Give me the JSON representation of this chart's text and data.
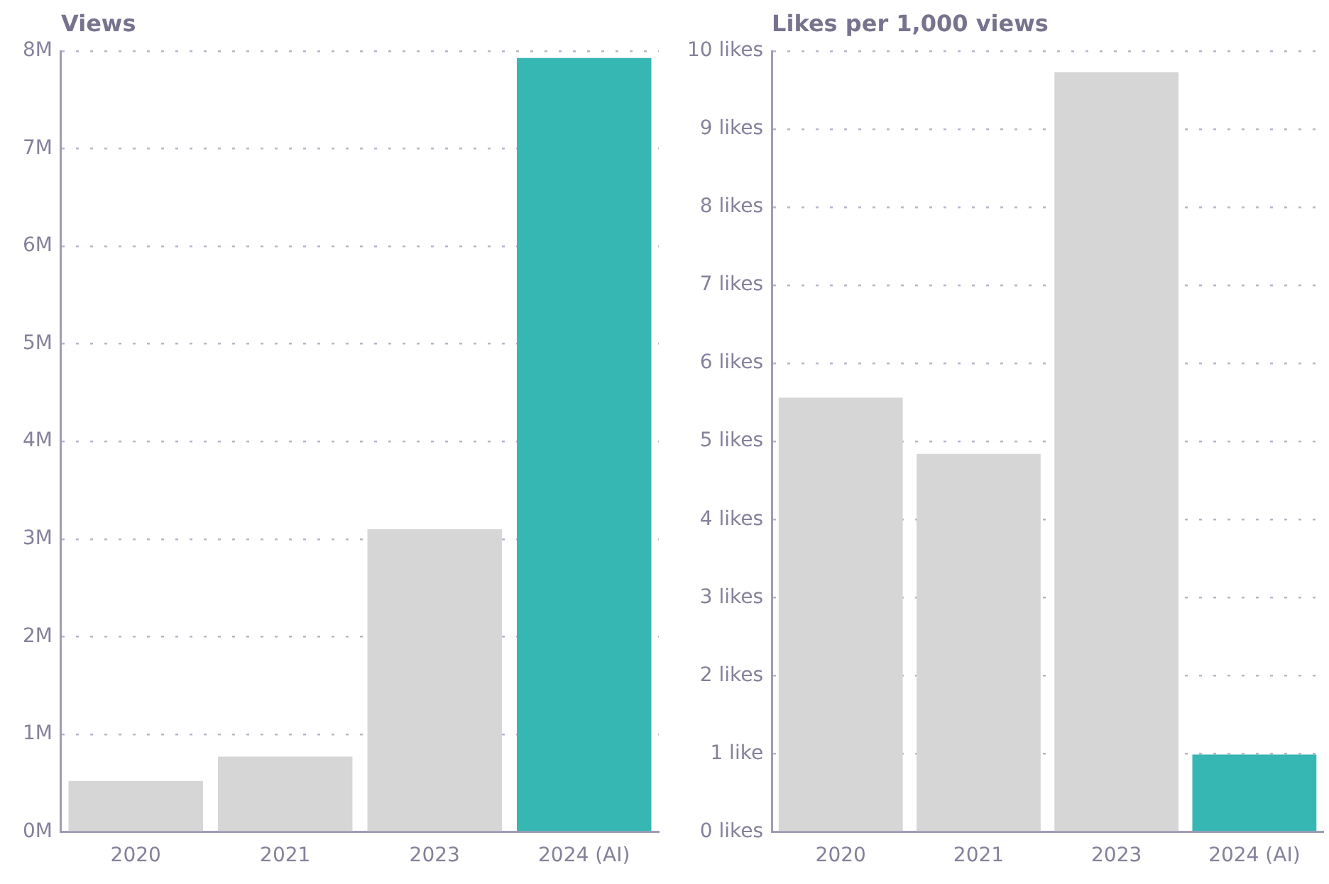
{
  "chart_data": [
    {
      "type": "bar",
      "title": "Views",
      "categories": [
        "2020",
        "2021",
        "2023",
        "2024 (AI)"
      ],
      "values": [
        0.52,
        0.77,
        3.1,
        7.93
      ],
      "colors": [
        "#d6d6d6",
        "#d6d6d6",
        "#d6d6d6",
        "#36b7b3"
      ],
      "ylim": [
        0,
        8
      ],
      "yticks": [
        {
          "value": 0,
          "label": "0M"
        },
        {
          "value": 1,
          "label": "1M"
        },
        {
          "value": 2,
          "label": "2M"
        },
        {
          "value": 3,
          "label": "3M"
        },
        {
          "value": 4,
          "label": "4M"
        },
        {
          "value": 5,
          "label": "5M"
        },
        {
          "value": 6,
          "label": "6M"
        },
        {
          "value": 7,
          "label": "7M"
        },
        {
          "value": 8,
          "label": "8M"
        }
      ],
      "grid": "y",
      "legend": false
    },
    {
      "type": "bar",
      "title": "Likes per 1,000 views",
      "categories": [
        "2020",
        "2021",
        "2023",
        "2024 (AI)"
      ],
      "values": [
        5.56,
        4.84,
        9.73,
        0.99
      ],
      "colors": [
        "#d6d6d6",
        "#d6d6d6",
        "#d6d6d6",
        "#36b7b3"
      ],
      "ylim": [
        0,
        10
      ],
      "yticks": [
        {
          "value": 0,
          "label": "0 likes"
        },
        {
          "value": 1,
          "label": "1 like"
        },
        {
          "value": 2,
          "label": "2 likes"
        },
        {
          "value": 3,
          "label": "3 likes"
        },
        {
          "value": 4,
          "label": "4 likes"
        },
        {
          "value": 5,
          "label": "5 likes"
        },
        {
          "value": 6,
          "label": "6 likes"
        },
        {
          "value": 7,
          "label": "7 likes"
        },
        {
          "value": 8,
          "label": "8 likes"
        },
        {
          "value": 9,
          "label": "9 likes"
        },
        {
          "value": 10,
          "label": "10 likes"
        }
      ],
      "grid": "y",
      "legend": false
    }
  ]
}
